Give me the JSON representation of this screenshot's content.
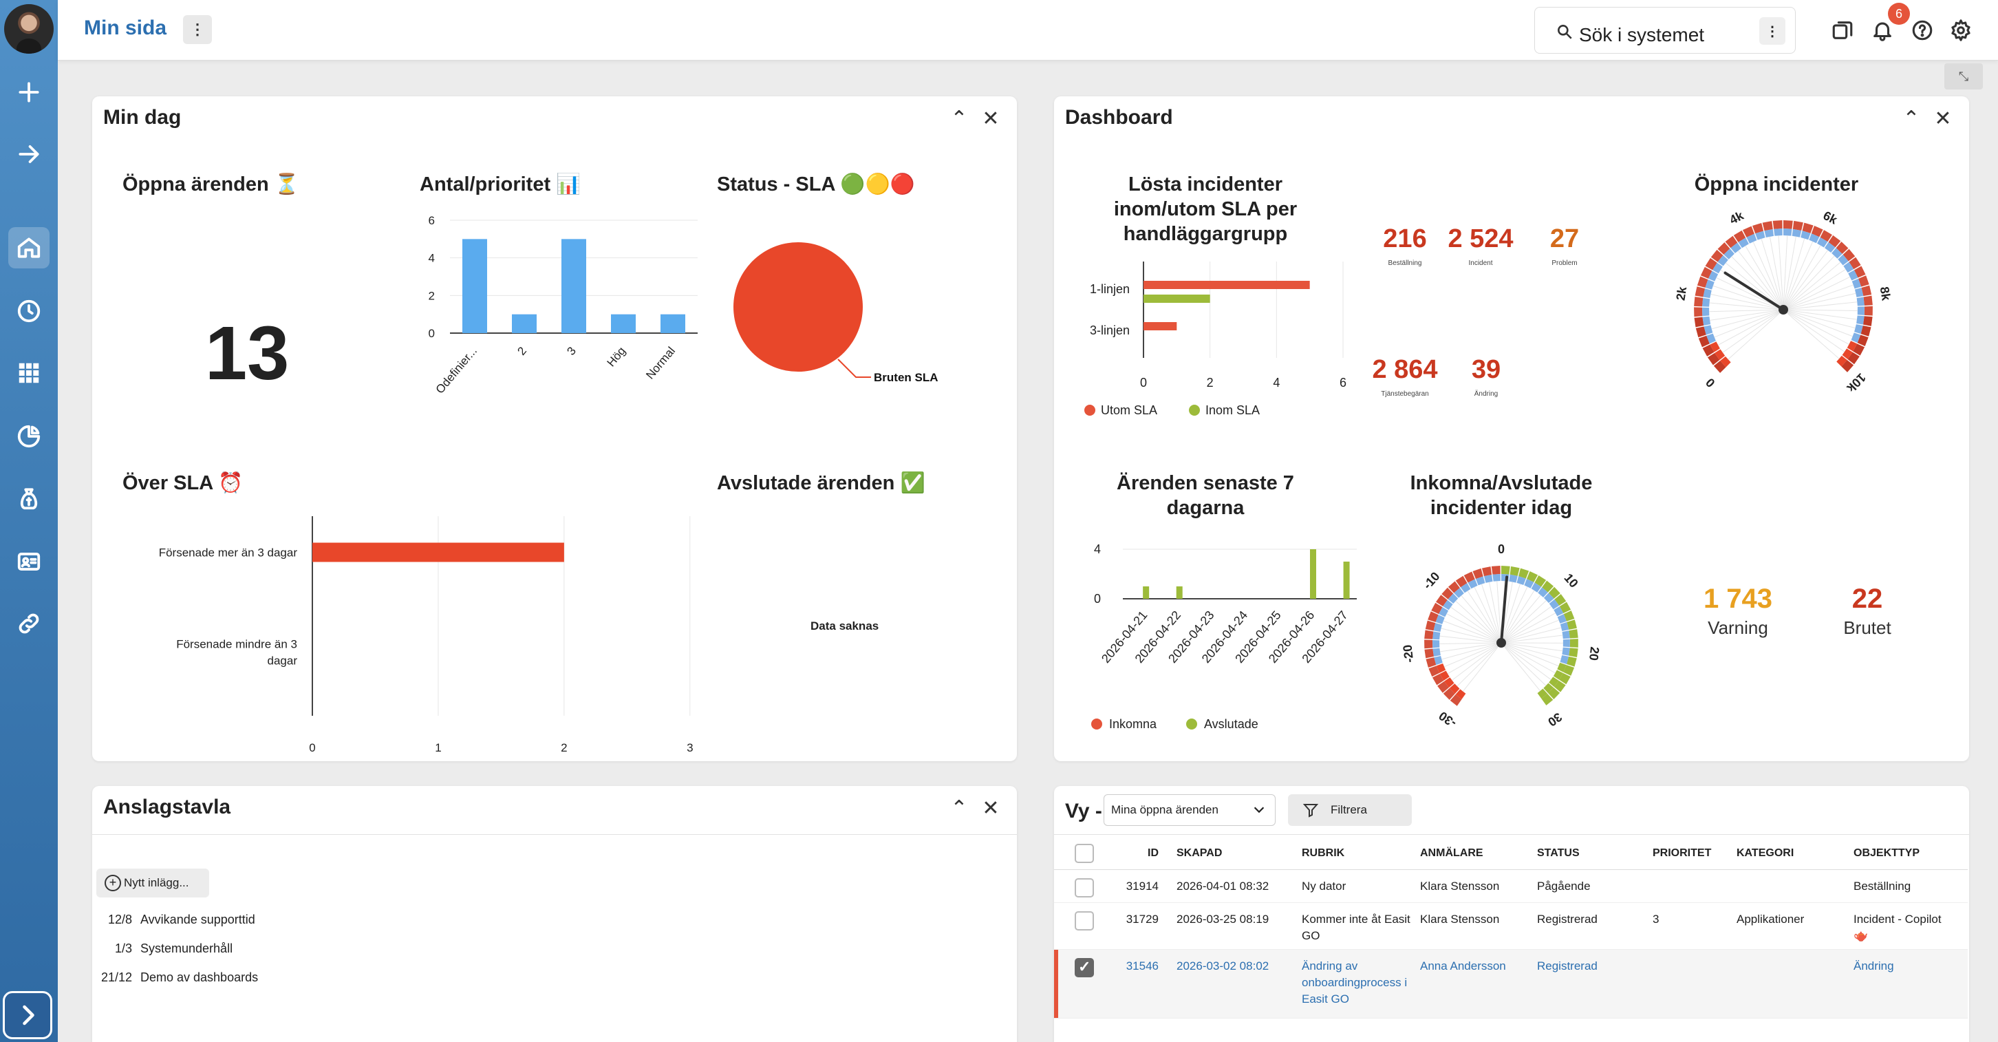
{
  "header": {
    "title": "Min sida",
    "search_placeholder": "Sök i systemet",
    "notification_count": "6"
  },
  "colors": {
    "red": "#e5543a",
    "blue": "#5aabee",
    "green": "#9dbb3a",
    "orange": "#e8a020",
    "darkred": "#c9381f"
  },
  "sidebar": {
    "icons": [
      "plus-icon",
      "arrow-right-icon",
      "home-icon",
      "clock-icon",
      "grid-icon",
      "pie-chart-icon",
      "money-bag-icon",
      "id-card-icon",
      "link-icon"
    ]
  },
  "min_dag": {
    "title": "Min dag",
    "open_title": "Öppna ärenden ⏳",
    "open_count": "13",
    "prio_title": "Antal/prioritet 📊",
    "sla_title": "Status - SLA 🟢🟡🔴",
    "sla_label": "Bruten SLA",
    "over_sla_title": "Över SLA ⏰",
    "closed_title": "Avslutade ärenden ✅",
    "no_data": "Data saknas"
  },
  "dashboard": {
    "title": "Dashboard",
    "solved_title_1": "Lösta incidenter",
    "solved_title_2": "inom/utom SLA per",
    "solved_title_3": "handläggargrupp",
    "stats": [
      {
        "value": "216",
        "label": "Beställning",
        "color": "#c9381f"
      },
      {
        "value": "2 524",
        "label": "Incident",
        "color": "#c9381f"
      },
      {
        "value": "27",
        "label": "Problem",
        "color": "#d46a1a"
      },
      {
        "value": "2 864",
        "label": "Tjänstebegäran",
        "color": "#c9381f"
      },
      {
        "value": "39",
        "label": "Ändring",
        "color": "#c9381f"
      }
    ],
    "open_inc_title": "Öppna incidenter",
    "last7_title_1": "Ärenden senaste 7",
    "last7_title_2": "dagarna",
    "inout_title_1": "Inkomna/Avslutade",
    "inout_title_2": "incidenter idag",
    "warning_value": "1 743",
    "warning_label": "Varning",
    "broken_value": "22",
    "broken_label": "Brutet"
  },
  "chart_data": [
    {
      "type": "bar",
      "title": "Antal/prioritet 📊",
      "categories": [
        "Odefinier...",
        "2",
        "3",
        "Hög",
        "Normal"
      ],
      "values": [
        5,
        1,
        5,
        1,
        1
      ],
      "ylim": [
        0,
        6
      ],
      "yticks": [
        "0",
        "2",
        "4",
        "6"
      ]
    },
    {
      "type": "pie",
      "title": "Status - SLA 🟢🟡🔴",
      "categories": [
        "Bruten SLA"
      ],
      "values": [
        100
      ]
    },
    {
      "type": "bar",
      "orientation": "horizontal",
      "title": "Över SLA ⏰",
      "categories": [
        "Försenade mer än 3 dagar",
        "Försenade mindre än 3 dagar"
      ],
      "values": [
        2,
        0
      ],
      "xlim": [
        0,
        3
      ],
      "xticks": [
        "0",
        "1",
        "2",
        "3"
      ]
    },
    {
      "type": "bar",
      "orientation": "horizontal",
      "title": "Lösta incidenter inom/utom SLA per handläggargrupp",
      "categories": [
        "1-linjen",
        "3-linjen"
      ],
      "series": [
        {
          "name": "Utom SLA",
          "values": [
            5,
            1
          ]
        },
        {
          "name": "Inom SLA",
          "values": [
            2,
            0
          ]
        }
      ],
      "xlim": [
        0,
        6
      ],
      "xticks": [
        "0",
        "2",
        "4",
        "6"
      ],
      "legend": "bottom"
    },
    {
      "type": "bar",
      "title": "Ärenden senaste 7 dagarna",
      "categories": [
        "2026-04-21",
        "2026-04-22",
        "2026-04-23",
        "2026-04-24",
        "2026-04-25",
        "2026-04-26",
        "2026-04-27"
      ],
      "series": [
        {
          "name": "Inkomna",
          "values": [
            0,
            0,
            0,
            0,
            0,
            0,
            0
          ]
        },
        {
          "name": "Avslutade",
          "values": [
            1,
            1,
            0,
            0,
            0,
            4,
            3
          ]
        }
      ],
      "ylim": [
        0,
        5
      ],
      "yticks": [
        "0",
        "4"
      ],
      "legend": "bottom"
    },
    {
      "type": "gauge",
      "title": "Öppna incidenter",
      "ticks": [
        "0",
        "2k",
        "4k",
        "6k",
        "8k",
        "10k"
      ],
      "min": 0,
      "max": 10000,
      "value": 2864
    },
    {
      "type": "gauge",
      "title": "Inkomna/Avslutade incidenter idag",
      "ticks": [
        "-30",
        "-20",
        "-10",
        "0",
        "10",
        "20",
        "30"
      ],
      "min": -30,
      "max": 30,
      "value": 1
    }
  ],
  "anslagstavla": {
    "title": "Anslagstavla",
    "new_post": "Nytt inlägg...",
    "posts": [
      {
        "date": "12/8",
        "text": "Avvikande supporttid"
      },
      {
        "date": "1/3",
        "text": "Systemunderhåll"
      },
      {
        "date": "21/12",
        "text": "Demo av dashboards"
      }
    ]
  },
  "vy": {
    "title": "Vy -",
    "selected_view": "Mina öppna ärenden",
    "filter_label": "Filtrera",
    "columns": [
      "ID",
      "SKAPAD",
      "RUBRIK",
      "ANMÄLARE",
      "STATUS",
      "PRIORITET",
      "KATEGORI",
      "OBJEKTTYP"
    ],
    "rows": [
      {
        "id": "31914",
        "created": "2026-04-01 08:32",
        "subject": "Ny dator",
        "reporter": "Klara Stensson",
        "status": "Pågående",
        "priority": "",
        "category": "",
        "type": "Beställning"
      },
      {
        "id": "31729",
        "created": "2026-03-25 08:19",
        "subject": "Kommer inte åt Easit GO",
        "reporter": "Klara Stensson",
        "status": "Registrerad",
        "priority": "3",
        "category": "Applikationer",
        "type": "Incident - Copilot 🫖"
      },
      {
        "id": "31546",
        "created": "2026-03-02 08:02",
        "subject": "Ändring av onboardingprocess i Easit GO",
        "reporter": "Anna Andersson",
        "status": "Registrerad",
        "priority": "",
        "category": "",
        "type": "Ändring"
      }
    ]
  }
}
